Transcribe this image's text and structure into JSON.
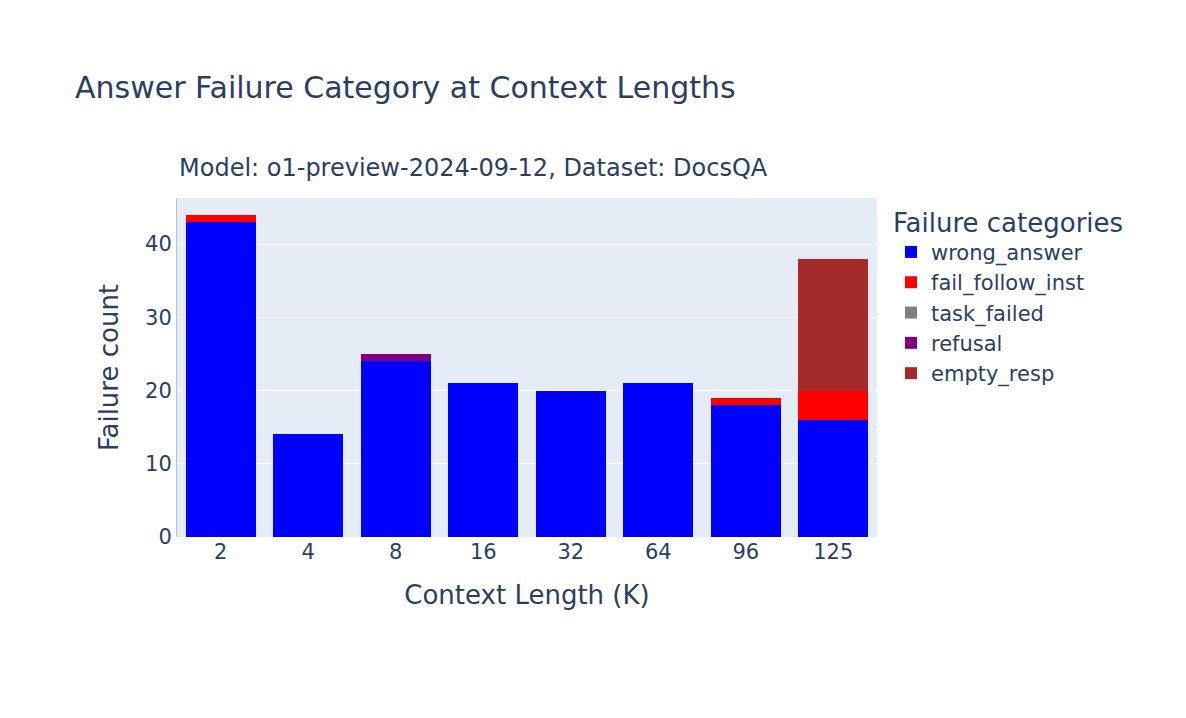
{
  "chart_data": {
    "type": "bar",
    "title": "Answer Failure Category at Context Lengths",
    "subtitle": "Model: o1-preview-2024-09-12, Dataset: DocsQA",
    "x_label": "Context Length (K)",
    "y_label": "Failure count",
    "legend_title": "Failure categories",
    "categories": [
      "2",
      "4",
      "8",
      "16",
      "32",
      "64",
      "96",
      "125"
    ],
    "series": [
      {
        "name": "wrong_answer",
        "color": "blue",
        "values": [
          43,
          14,
          24,
          21,
          20,
          21,
          18,
          16
        ]
      },
      {
        "name": "fail_follow_inst",
        "color": "red",
        "values": [
          1,
          0,
          0,
          0,
          0,
          0,
          1,
          4
        ]
      },
      {
        "name": "task_failed",
        "color": "gray",
        "values": [
          0,
          0,
          0,
          0,
          0,
          0,
          0,
          0
        ]
      },
      {
        "name": "refusal",
        "color": "purple",
        "values": [
          0,
          0,
          1,
          0,
          0,
          0,
          0,
          0
        ]
      },
      {
        "name": "empty_resp",
        "color": "brown",
        "values": [
          0,
          0,
          0,
          0,
          0,
          0,
          0,
          18
        ]
      }
    ],
    "stacked": true,
    "ylim": [
      0,
      46.3
    ],
    "yticks": [
      0,
      10,
      20,
      30,
      40
    ],
    "grid": true,
    "legend": "right"
  }
}
